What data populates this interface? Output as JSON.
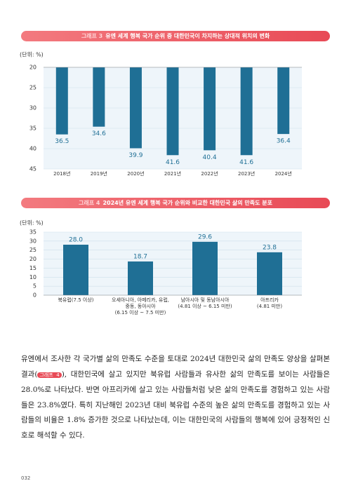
{
  "chart_data": [
    {
      "type": "bar",
      "label": "그래프 3",
      "title": "유엔 세계 행복 국가 순위 중 대한민국이 차지하는 상대적 위치의 변화",
      "y_label": "(단위: %)",
      "categories": [
        "2018년",
        "2019년",
        "2020년",
        "2021년",
        "2022년",
        "2023년",
        "2024년"
      ],
      "values": [
        36.5,
        34.6,
        39.9,
        41.6,
        40.4,
        41.6,
        36.4
      ],
      "color": "#1f6f95",
      "ylim": [
        20,
        45
      ],
      "yticks": [
        20,
        25,
        30,
        35,
        40,
        45
      ],
      "y_inverted": true,
      "grid": true
    },
    {
      "type": "bar",
      "label": "그래프 4",
      "title": "2024년 유엔 세계 행복 국가 순위와 비교한 대한민국 삶의 만족도 분포",
      "y_label": "(단위: %)",
      "categories": [
        "북유럽(7.5 이상)",
        "오세아니아, 아메리카, 유럽,\n중동, 동아시아\n(6.15 이상 ~ 7.5 미만)",
        "남아시아 및 동남아시아\n(4.81 이상 ~ 6.15 미만)",
        "아프리카\n(4.81 미만)"
      ],
      "values": [
        28.0,
        18.7,
        29.6,
        23.8
      ],
      "value_labels": [
        "28.0",
        "18.7",
        "29.6",
        "23.8"
      ],
      "color": "#1f6f95",
      "ylim": [
        0,
        35
      ],
      "yticks": [
        0,
        5,
        10,
        15,
        20,
        25,
        30,
        35
      ],
      "y_inverted": false,
      "grid": true
    }
  ],
  "body": {
    "text_before": "유엔에서 조사한 각 국가별 삶의 만족도 수준을 토대로 2024년 대한민국 삶의 만족도 양상을 살펴본 결과(",
    "ref": "그래프 4",
    "text_after": "), 대한민국에 살고 있지만 북유럽 사람들과 유사한 삶의 만족도를 보이는 사람들은 28.0%로 나타났다. 반면 아프리카에 살고 있는 사람들처럼 낮은 삶의 만족도를 경험하고 있는 사람들은 23.8%였다. 특히 지난해인 2023년 대비 북유럽 수준의 높은 삶의 만족도를 경험하고 있는 사람들의 비율은 1.8% 증가한 것으로 나타났는데, 이는 대한민국의 사람들의 행복에 있어 긍정적인 신호로 해석할 수 있다."
  },
  "page_number": "032"
}
